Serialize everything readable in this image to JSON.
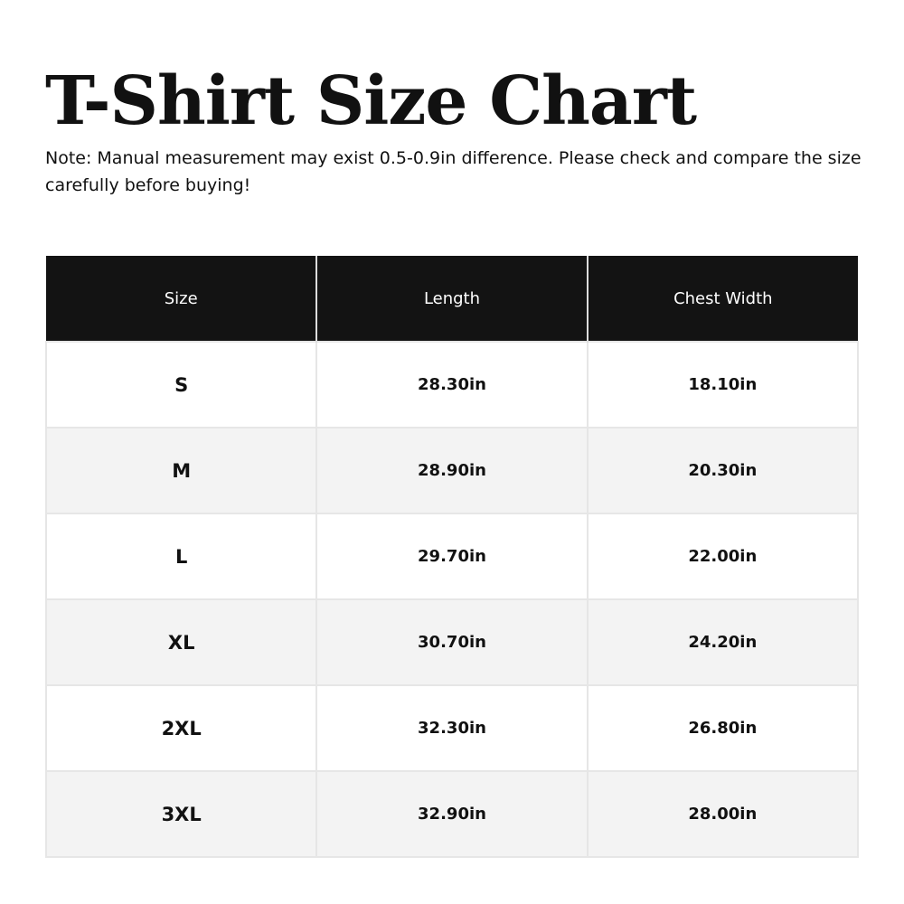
{
  "title": "T-Shirt Size Chart",
  "note": "Note: Manual measurement may exist 0.5-0.9in difference. Please check and compare the size carefully before buying!",
  "table": {
    "headers": [
      "Size",
      "Length",
      "Chest Width"
    ],
    "rows": [
      [
        "S",
        "28.30in",
        "18.10in"
      ],
      [
        "M",
        "28.90in",
        "20.30in"
      ],
      [
        "L",
        "29.70in",
        "22.00in"
      ],
      [
        "XL",
        "30.70in",
        "24.20in"
      ],
      [
        "2XL",
        "32.30in",
        "26.80in"
      ],
      [
        "3XL",
        "32.90in",
        "28.00in"
      ]
    ]
  },
  "colors": {
    "header_bg": "#131313",
    "alt_row_bg": "#f3f3f3"
  }
}
